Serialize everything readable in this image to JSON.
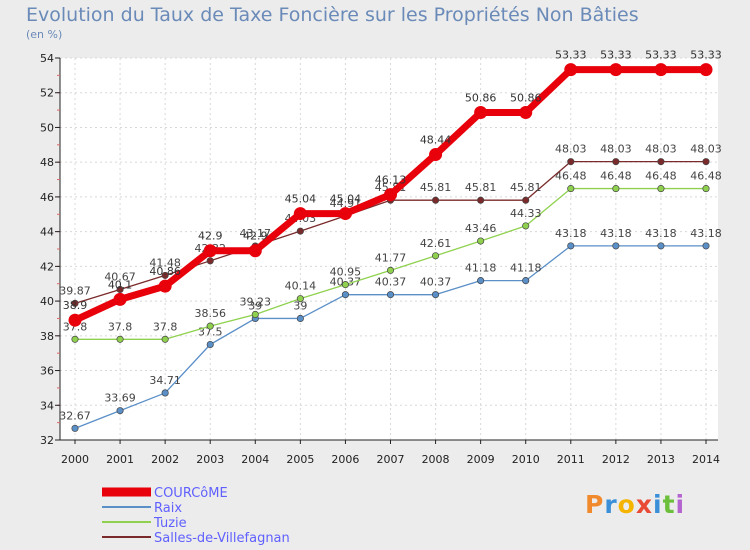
{
  "title": "Evolution du Taux de Taxe Foncière sur les Propriétés Non Bâties",
  "subtitle": "(en %)",
  "logo": {
    "letters": [
      "P",
      "r",
      "o",
      "x",
      "i",
      "t",
      "i"
    ],
    "colors": [
      "#f08a2c",
      "#3a8fd8",
      "#f5b400",
      "#e84a35",
      "#3a8fd8",
      "#6bbf3a",
      "#b565d0"
    ]
  },
  "chart_data": {
    "type": "line",
    "title": "Evolution du Taux de Taxe Foncière sur les Propriétés Non Bâties",
    "ylabel": "(en %)",
    "ylim": [
      32,
      54
    ],
    "yticks": [
      32,
      34,
      36,
      38,
      40,
      42,
      44,
      46,
      48,
      50,
      52,
      54
    ],
    "grid": true,
    "legend_position": "bottom-left",
    "x": [
      "2000",
      "2001",
      "2002",
      "2003",
      "2004",
      "2005",
      "2006",
      "2007",
      "2008",
      "2009",
      "2010",
      "2011",
      "2012",
      "2013",
      "2014"
    ],
    "series": [
      {
        "name": "COURCôME",
        "color": "#e8000b",
        "values": [
          38.9,
          40.1,
          40.86,
          42.9,
          42.9,
          45.04,
          45.04,
          46.13,
          48.44,
          50.86,
          50.86,
          53.33,
          53.33,
          53.33,
          53.33
        ],
        "labels": [
          "38.9",
          "40.1",
          "40.86",
          "42.9",
          "42.9",
          "45.04",
          "45.04",
          "46.13",
          "48.44",
          "50.86",
          "50.86",
          "53.33",
          "53.33",
          "53.33",
          "53.33"
        ]
      },
      {
        "name": "Raix",
        "color": "#5a8fc8",
        "values": [
          32.67,
          33.69,
          34.71,
          37.5,
          39,
          39,
          40.37,
          40.37,
          40.37,
          41.18,
          41.18,
          43.18,
          43.18,
          43.18,
          43.18
        ],
        "labels": [
          "32.67",
          "33.69",
          "34.71",
          "37.5",
          "39",
          "39",
          "40.37",
          "40.37",
          "40.37",
          "41.18",
          "41.18",
          "43.18",
          "43.18",
          "43.18",
          "43.18"
        ]
      },
      {
        "name": "Tuzie",
        "color": "#8fd14f",
        "values": [
          37.8,
          37.8,
          37.8,
          38.56,
          39.23,
          40.14,
          40.95,
          41.77,
          42.61,
          43.46,
          44.33,
          46.48,
          46.48,
          46.48,
          46.48
        ],
        "labels": [
          "37.8",
          "37.8",
          "37.8",
          "38.56",
          "39.23",
          "40.14",
          "40.95",
          "41.77",
          "42.61",
          "43.46",
          "44.33",
          "46.48",
          "46.48",
          "46.48",
          "46.48"
        ]
      },
      {
        "name": "Salles-de-Villefagnan",
        "color": "#7a2a2a",
        "values": [
          39.87,
          40.67,
          41.48,
          42.32,
          43.17,
          44.03,
          44.91,
          45.81,
          45.81,
          45.81,
          45.81,
          48.03,
          48.03,
          48.03,
          48.03
        ],
        "labels": [
          "39.87",
          "40.67",
          "41.48",
          "42.32",
          "43.17",
          "44.03",
          "44.91",
          "45.81",
          "45.81",
          "45.81",
          "45.81",
          "48.03",
          "48.03",
          "48.03",
          "48.03"
        ]
      }
    ]
  }
}
